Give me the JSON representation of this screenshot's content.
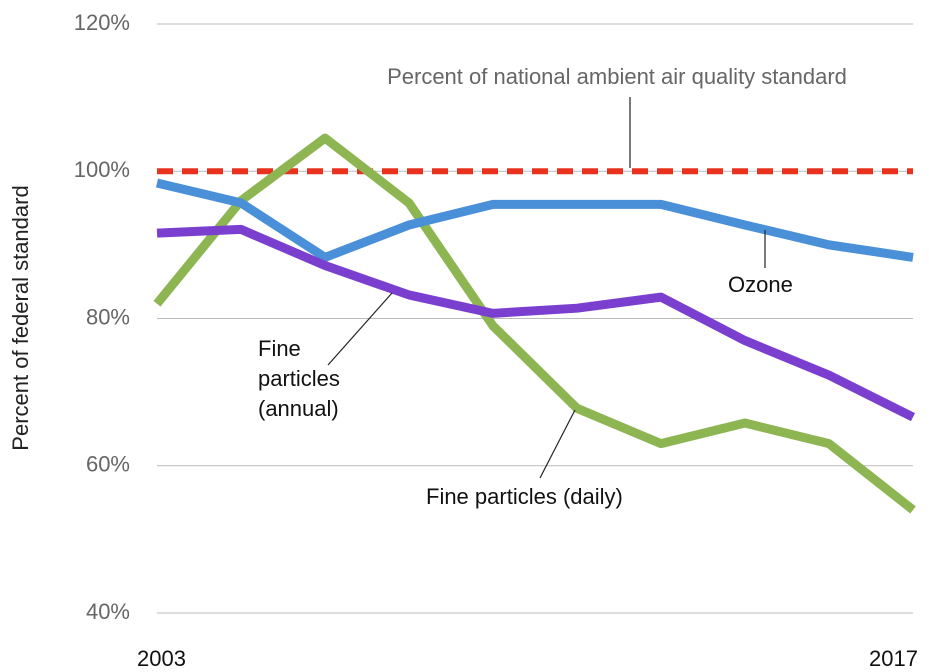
{
  "chart_data": {
    "type": "line",
    "y_label": "Percent of federal standard",
    "categories": [
      "2003",
      null,
      null,
      null,
      null,
      null,
      null,
      null,
      null,
      "2017"
    ],
    "series": [
      {
        "name": "Fine particles (daily)",
        "color": "#8db552",
        "values": [
          82,
          96,
          104.5,
          95.7,
          79,
          67.8,
          63,
          65.8,
          63,
          54
        ]
      },
      {
        "name": "Ozone",
        "color": "#4a90d9",
        "values": [
          98.4,
          95.7,
          88.3,
          92.7,
          95.5,
          95.5,
          95.5,
          92.7,
          90,
          88.3
        ]
      },
      {
        "name": "Fine particles (annual)",
        "color": "#7b3fcf",
        "values": [
          91.6,
          92.1,
          87.2,
          83.2,
          80.7,
          81.4,
          82.9,
          77,
          72.3,
          66.6
        ]
      }
    ],
    "reference_line": {
      "value": 100,
      "label": "Percent of national ambient air quality standard",
      "color": "#e8321e"
    },
    "ylim": [
      40,
      120
    ],
    "yticks": [
      {
        "value": 40,
        "label": "40%"
      },
      {
        "value": 60,
        "label": "60%"
      },
      {
        "value": 80,
        "label": "80%"
      },
      {
        "value": 100,
        "label": "100%"
      },
      {
        "value": 120,
        "label": "120%"
      }
    ],
    "grid": true
  }
}
